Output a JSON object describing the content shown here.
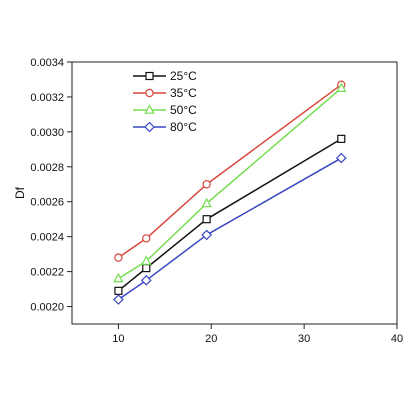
{
  "chart_data": {
    "type": "line",
    "title": "",
    "xlabel": "",
    "ylabel": "Df",
    "xlim": [
      5,
      40
    ],
    "ylim": [
      0.0019,
      0.0034
    ],
    "x_ticks": [
      10,
      20,
      30,
      40
    ],
    "x_tick_labels": [
      "10",
      "20",
      "30",
      "40"
    ],
    "y_ticks": [
      0.002,
      0.0022,
      0.0024,
      0.0026,
      0.0028,
      0.003,
      0.0032,
      0.0034
    ],
    "y_tick_labels": [
      "0.0020",
      "0.0022",
      "0.0024",
      "0.0026",
      "0.0028",
      "0.0030",
      "0.0032",
      "0.0034"
    ],
    "grid": false,
    "legend_position": "top-left",
    "series": [
      {
        "name": "25°C",
        "color": "#111111",
        "marker": "square",
        "points": [
          {
            "x": 10,
            "y": 0.00209
          },
          {
            "x": 13,
            "y": 0.00222
          },
          {
            "x": 19.5,
            "y": 0.0025
          },
          {
            "x": 34,
            "y": 0.00296
          }
        ]
      },
      {
        "name": "35°C",
        "color": "#d9463d",
        "marker": "circle",
        "points": [
          {
            "x": 10,
            "y": 0.00228
          },
          {
            "x": 13,
            "y": 0.00239
          },
          {
            "x": 19.5,
            "y": 0.0027
          },
          {
            "x": 34,
            "y": 0.00327
          }
        ]
      },
      {
        "name": "50°C",
        "color": "#74dd4e",
        "marker": "triangle",
        "points": [
          {
            "x": 10,
            "y": 0.00216
          },
          {
            "x": 13,
            "y": 0.00226
          },
          {
            "x": 19.5,
            "y": 0.00259
          },
          {
            "x": 34,
            "y": 0.00325
          }
        ]
      },
      {
        "name": "80°C",
        "color": "#3946c2",
        "marker": "diamond",
        "points": [
          {
            "x": 10,
            "y": 0.00204
          },
          {
            "x": 13,
            "y": 0.00215
          },
          {
            "x": 19.5,
            "y": 0.00241
          },
          {
            "x": 34,
            "y": 0.00285
          }
        ]
      }
    ]
  }
}
